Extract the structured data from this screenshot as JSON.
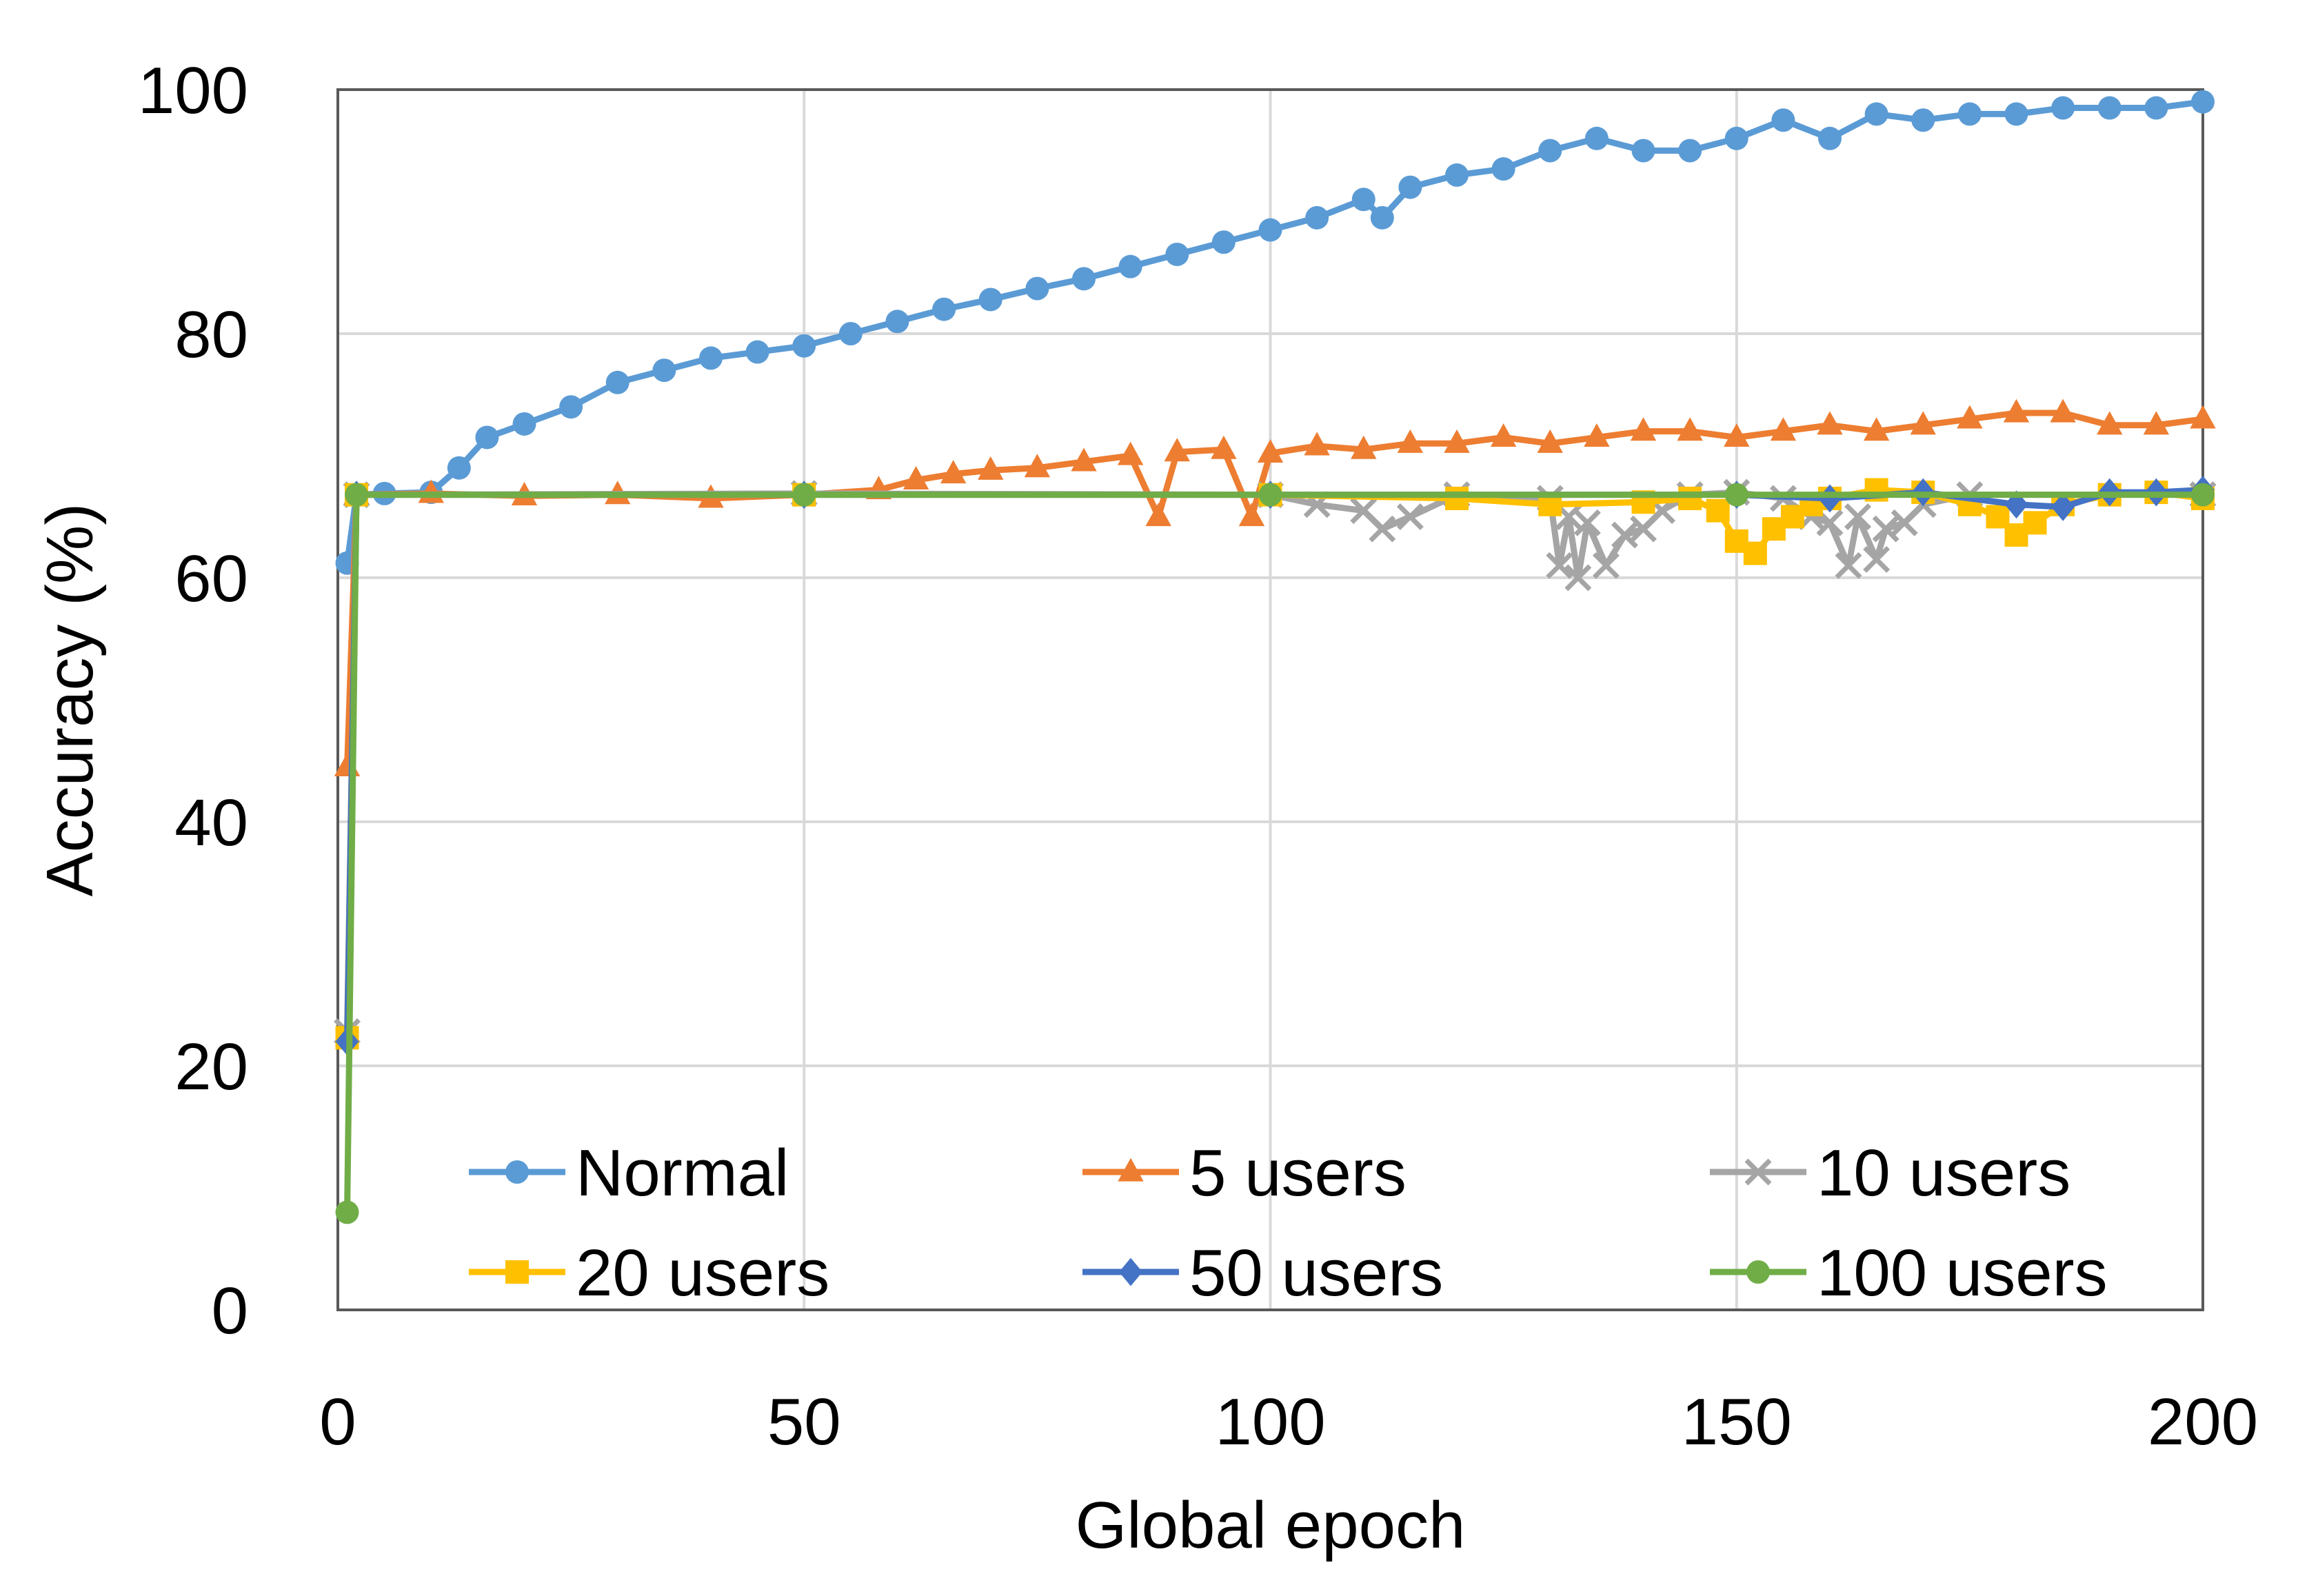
{
  "chart_data": {
    "type": "line",
    "title": "",
    "xlabel": "Global epoch",
    "ylabel": "Accuracy (%)",
    "xlim": [
      0,
      200
    ],
    "ylim": [
      0,
      100
    ],
    "xticks": [
      0,
      50,
      100,
      150,
      200
    ],
    "yticks": [
      0,
      20,
      40,
      60,
      80,
      100
    ],
    "grid": true,
    "legend_position": "bottom-inside",
    "series": [
      {
        "name": "Normal",
        "color": "#5B9BD5",
        "marker": "circle",
        "points": [
          [
            1,
            61.2
          ],
          [
            2,
            66.8
          ],
          [
            5,
            66.9
          ],
          [
            10,
            67.0
          ],
          [
            13,
            69.0
          ],
          [
            16,
            71.5
          ],
          [
            20,
            72.6
          ],
          [
            25,
            74.0
          ],
          [
            30,
            76.0
          ],
          [
            35,
            77.0
          ],
          [
            40,
            78.0
          ],
          [
            45,
            78.5
          ],
          [
            50,
            79.0
          ],
          [
            55,
            80.0
          ],
          [
            60,
            81.0
          ],
          [
            65,
            82.0
          ],
          [
            70,
            82.8
          ],
          [
            75,
            83.7
          ],
          [
            80,
            84.5
          ],
          [
            85,
            85.5
          ],
          [
            90,
            86.5
          ],
          [
            95,
            87.5
          ],
          [
            100,
            88.5
          ],
          [
            105,
            89.5
          ],
          [
            110,
            91.0
          ],
          [
            112,
            89.5
          ],
          [
            115,
            92.0
          ],
          [
            120,
            93.0
          ],
          [
            125,
            93.5
          ],
          [
            130,
            95.0
          ],
          [
            135,
            96.0
          ],
          [
            140,
            95.0
          ],
          [
            145,
            95.0
          ],
          [
            150,
            96.0
          ],
          [
            155,
            97.5
          ],
          [
            160,
            96.0
          ],
          [
            165,
            98.0
          ],
          [
            170,
            97.5
          ],
          [
            175,
            98.0
          ],
          [
            180,
            98.0
          ],
          [
            185,
            98.5
          ],
          [
            190,
            98.5
          ],
          [
            195,
            98.5
          ],
          [
            200,
            99.0
          ]
        ]
      },
      {
        "name": "5 users",
        "color": "#ED7D31",
        "marker": "triangle",
        "points": [
          [
            1,
            44.5
          ],
          [
            2,
            66.8
          ],
          [
            10,
            66.9
          ],
          [
            20,
            66.7
          ],
          [
            30,
            66.8
          ],
          [
            40,
            66.5
          ],
          [
            50,
            66.8
          ],
          [
            58,
            67.2
          ],
          [
            62,
            68.0
          ],
          [
            66,
            68.5
          ],
          [
            70,
            68.8
          ],
          [
            75,
            69.0
          ],
          [
            80,
            69.5
          ],
          [
            85,
            70.0
          ],
          [
            88,
            65.0
          ],
          [
            90,
            70.3
          ],
          [
            95,
            70.5
          ],
          [
            98,
            65.0
          ],
          [
            100,
            70.2
          ],
          [
            105,
            70.8
          ],
          [
            110,
            70.5
          ],
          [
            115,
            71.0
          ],
          [
            120,
            71.0
          ],
          [
            125,
            71.5
          ],
          [
            130,
            71.0
          ],
          [
            135,
            71.5
          ],
          [
            140,
            72.0
          ],
          [
            145,
            72.0
          ],
          [
            150,
            71.5
          ],
          [
            155,
            72.0
          ],
          [
            160,
            72.5
          ],
          [
            165,
            72.0
          ],
          [
            170,
            72.5
          ],
          [
            175,
            73.0
          ],
          [
            180,
            73.5
          ],
          [
            185,
            73.5
          ],
          [
            190,
            72.5
          ],
          [
            195,
            72.5
          ],
          [
            200,
            73.0
          ]
        ]
      },
      {
        "name": "10 users",
        "color": "#A5A5A5",
        "marker": "x",
        "points": [
          [
            1,
            22.8
          ],
          [
            2,
            66.8
          ],
          [
            50,
            66.9
          ],
          [
            100,
            66.8
          ],
          [
            105,
            66.0
          ],
          [
            110,
            65.5
          ],
          [
            112,
            64.0
          ],
          [
            115,
            65.0
          ],
          [
            120,
            66.8
          ],
          [
            130,
            66.5
          ],
          [
            131,
            61.0
          ],
          [
            132,
            65.0
          ],
          [
            133,
            60.0
          ],
          [
            134,
            64.5
          ],
          [
            136,
            61.0
          ],
          [
            138,
            63.5
          ],
          [
            140,
            64.0
          ],
          [
            142,
            65.5
          ],
          [
            145,
            66.8
          ],
          [
            150,
            67.0
          ],
          [
            155,
            66.5
          ],
          [
            158,
            65.0
          ],
          [
            160,
            64.5
          ],
          [
            162,
            61.0
          ],
          [
            163,
            65.0
          ],
          [
            165,
            61.5
          ],
          [
            166,
            64.0
          ],
          [
            168,
            64.5
          ],
          [
            170,
            66.0
          ],
          [
            175,
            66.8
          ],
          [
            200,
            66.8
          ]
        ]
      },
      {
        "name": "20 users",
        "color": "#FFC000",
        "marker": "square",
        "points": [
          [
            1,
            22.3
          ],
          [
            2,
            66.8
          ],
          [
            50,
            66.8
          ],
          [
            100,
            66.8
          ],
          [
            120,
            66.5
          ],
          [
            130,
            66.0
          ],
          [
            140,
            66.2
          ],
          [
            145,
            66.5
          ],
          [
            148,
            65.5
          ],
          [
            150,
            63.0
          ],
          [
            152,
            62.0
          ],
          [
            154,
            64.0
          ],
          [
            156,
            65.0
          ],
          [
            158,
            66.0
          ],
          [
            160,
            66.5
          ],
          [
            165,
            67.2
          ],
          [
            170,
            67.0
          ],
          [
            175,
            66.0
          ],
          [
            178,
            65.0
          ],
          [
            180,
            63.5
          ],
          [
            182,
            64.5
          ],
          [
            185,
            66.0
          ],
          [
            190,
            66.8
          ],
          [
            195,
            67.0
          ],
          [
            200,
            66.5
          ]
        ]
      },
      {
        "name": "50 users",
        "color": "#4472C4",
        "marker": "diamond",
        "points": [
          [
            1,
            22.0
          ],
          [
            2,
            66.8
          ],
          [
            50,
            66.8
          ],
          [
            100,
            66.8
          ],
          [
            150,
            66.8
          ],
          [
            160,
            66.5
          ],
          [
            170,
            67.0
          ],
          [
            180,
            66.0
          ],
          [
            185,
            65.8
          ],
          [
            190,
            67.0
          ],
          [
            195,
            67.0
          ],
          [
            200,
            67.2
          ]
        ]
      },
      {
        "name": "100 users",
        "color": "#70AD47",
        "marker": "circle",
        "points": [
          [
            1,
            8.0
          ],
          [
            2,
            66.8
          ],
          [
            50,
            66.8
          ],
          [
            100,
            66.8
          ],
          [
            150,
            66.8
          ],
          [
            200,
            66.8
          ]
        ]
      }
    ]
  }
}
